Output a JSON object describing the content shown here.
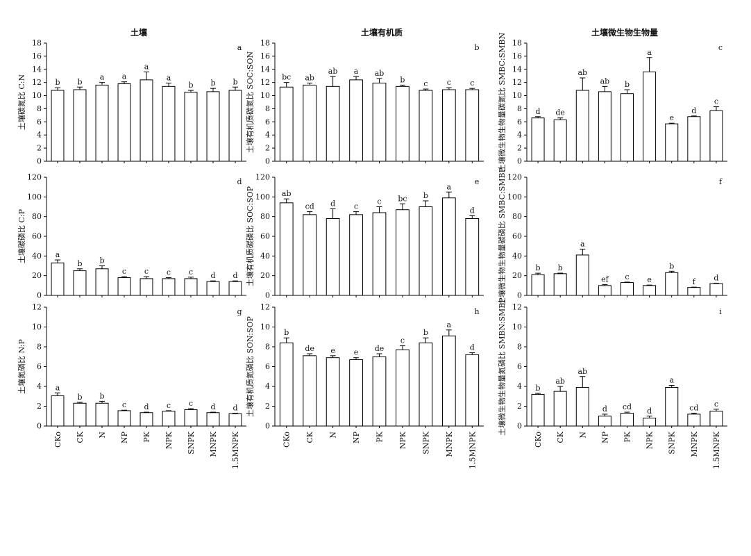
{
  "column_titles": [
    "土壤",
    "土壤有机质",
    "土壤微生物生物量"
  ],
  "chart_data": [
    {
      "panel": "a",
      "type": "bar",
      "ylabel": "土壤碳氮比 C:N",
      "ylim": [
        0,
        18
      ],
      "yticks": [
        0,
        2,
        4,
        6,
        8,
        10,
        12,
        14,
        16,
        18
      ],
      "categories": [
        "CKo",
        "CK",
        "N",
        "NP",
        "PK",
        "NPK",
        "SNPK",
        "MNPK",
        "1.5MNPK"
      ],
      "values": [
        10.8,
        10.9,
        11.6,
        11.8,
        12.4,
        11.4,
        10.5,
        10.6,
        10.8
      ],
      "errors": [
        0.4,
        0.4,
        0.4,
        0.3,
        1.2,
        0.5,
        0.3,
        0.5,
        0.5
      ],
      "letters": [
        "b",
        "b",
        "a",
        "a",
        "a",
        "a",
        "b",
        "b",
        "b"
      ]
    },
    {
      "panel": "b",
      "type": "bar",
      "ylabel": "土壤有机质碳氮比 SOC:SON",
      "ylim": [
        0,
        18
      ],
      "yticks": [
        0,
        2,
        4,
        6,
        8,
        10,
        12,
        14,
        16,
        18
      ],
      "categories": [
        "CKo",
        "CK",
        "N",
        "NP",
        "PK",
        "NPK",
        "SNPK",
        "MNPK",
        "1.5MNPK"
      ],
      "values": [
        11.3,
        11.6,
        11.4,
        12.4,
        11.9,
        11.4,
        10.8,
        10.9,
        10.9
      ],
      "errors": [
        0.7,
        0.3,
        1.5,
        0.5,
        0.7,
        0.2,
        0.2,
        0.3,
        0.2
      ],
      "letters": [
        "bc",
        "ab",
        "ab",
        "a",
        "ab",
        "b",
        "c",
        "c",
        "c"
      ]
    },
    {
      "panel": "c",
      "type": "bar",
      "ylabel": "土壤微生物生物量碳氮比 SMBC:SMBN",
      "ylim": [
        0,
        18
      ],
      "yticks": [
        0,
        2,
        4,
        6,
        8,
        10,
        12,
        14,
        16,
        18
      ],
      "categories": [
        "CKo",
        "CK",
        "N",
        "NP",
        "PK",
        "NPK",
        "SNPK",
        "MNPK",
        "1.5MNPK"
      ],
      "values": [
        6.6,
        6.3,
        10.8,
        10.6,
        10.3,
        13.6,
        5.7,
        6.8,
        7.7
      ],
      "errors": [
        0.2,
        0.3,
        1.9,
        0.8,
        0.6,
        2.2,
        0.1,
        0.1,
        0.6
      ],
      "letters": [
        "d",
        "de",
        "ab",
        "ab",
        "b",
        "a",
        "e",
        "d",
        "c"
      ]
    },
    {
      "panel": "d",
      "type": "bar",
      "ylabel": "土壤碳磷比 C:P",
      "ylim": [
        0,
        120
      ],
      "yticks": [
        0,
        20,
        40,
        60,
        80,
        100,
        120
      ],
      "categories": [
        "CKo",
        "CK",
        "N",
        "NP",
        "PK",
        "NPK",
        "SNPK",
        "MNPK",
        "1.5MNPK"
      ],
      "values": [
        33,
        25,
        27,
        18,
        17,
        17,
        17,
        14,
        14
      ],
      "errors": [
        3,
        2,
        3,
        1,
        2,
        1,
        1.5,
        0.7,
        0.7
      ],
      "letters": [
        "a",
        "b",
        "b",
        "c",
        "c",
        "c",
        "c",
        "d",
        "d"
      ]
    },
    {
      "panel": "e",
      "type": "bar",
      "ylabel": "土壤有机质碳磷比 SOC:SOP",
      "ylim": [
        0,
        120
      ],
      "yticks": [
        0,
        20,
        40,
        60,
        80,
        100,
        120
      ],
      "categories": [
        "CKo",
        "CK",
        "N",
        "NP",
        "PK",
        "NPK",
        "SNPK",
        "MNPK",
        "1.5MNPK"
      ],
      "values": [
        94,
        82,
        78,
        82,
        84,
        87,
        90,
        99,
        78
      ],
      "errors": [
        4,
        3,
        10,
        3,
        6,
        6,
        6,
        6,
        3
      ],
      "letters": [
        "ab",
        "cd",
        "d",
        "c",
        "c",
        "bc",
        "b",
        "a",
        "d"
      ]
    },
    {
      "panel": "f",
      "type": "bar",
      "ylabel": "土壤微生物生物量碳磷比 SMBC:SMBP",
      "ylim": [
        0,
        120
      ],
      "yticks": [
        0,
        20,
        40,
        60,
        80,
        100,
        120
      ],
      "categories": [
        "CKo",
        "CK",
        "N",
        "NP",
        "PK",
        "NPK",
        "SNPK",
        "MNPK",
        "1.5MNPK"
      ],
      "values": [
        21,
        22,
        41,
        10,
        13,
        10,
        23,
        8,
        12
      ],
      "errors": [
        1.5,
        0.6,
        6,
        1,
        0.5,
        0.5,
        1.5,
        0.4,
        0.4
      ],
      "letters": [
        "b",
        "b",
        "a",
        "ef",
        "c",
        "e",
        "b",
        "f",
        "d"
      ]
    },
    {
      "panel": "g",
      "type": "bar",
      "ylabel": "土壤氮磷比 N:P",
      "ylim": [
        0,
        12
      ],
      "yticks": [
        0,
        2,
        4,
        6,
        8,
        10,
        12
      ],
      "categories": [
        "CKo",
        "CK",
        "N",
        "NP",
        "PK",
        "NPK",
        "SNPK",
        "MNPK",
        "1.5MNPK"
      ],
      "values": [
        3.05,
        2.3,
        2.3,
        1.55,
        1.35,
        1.5,
        1.65,
        1.35,
        1.25
      ],
      "errors": [
        0.3,
        0.1,
        0.2,
        0.05,
        0.05,
        0.05,
        0.1,
        0.05,
        0.05
      ],
      "letters": [
        "a",
        "b",
        "b",
        "c",
        "d",
        "c",
        "c",
        "d",
        "d"
      ]
    },
    {
      "panel": "h",
      "type": "bar",
      "ylabel": "土壤有机质氮磷比 SON:SOP",
      "ylim": [
        0,
        12
      ],
      "yticks": [
        0,
        2,
        4,
        6,
        8,
        10,
        12
      ],
      "categories": [
        "CKo",
        "CK",
        "N",
        "NP",
        "PK",
        "NPK",
        "SNPK",
        "MNPK",
        "1.5MNPK"
      ],
      "values": [
        8.4,
        7.1,
        6.9,
        6.7,
        7.0,
        7.7,
        8.4,
        9.1,
        7.2
      ],
      "errors": [
        0.5,
        0.2,
        0.2,
        0.2,
        0.3,
        0.4,
        0.5,
        0.6,
        0.2
      ],
      "letters": [
        "b",
        "de",
        "e",
        "e",
        "de",
        "c",
        "b",
        "a",
        "d"
      ]
    },
    {
      "panel": "i",
      "type": "bar",
      "ylabel": "土壤微生物生物量氮磷比 SMBN:SMBP",
      "ylim": [
        0,
        12
      ],
      "yticks": [
        0,
        2,
        4,
        6,
        8,
        10,
        12
      ],
      "categories": [
        "CKo",
        "CK",
        "N",
        "NP",
        "PK",
        "NPK",
        "SNPK",
        "MNPK",
        "1.5MNPK"
      ],
      "values": [
        3.2,
        3.5,
        3.9,
        1.0,
        1.3,
        0.8,
        3.9,
        1.2,
        1.5
      ],
      "errors": [
        0.1,
        0.5,
        1.1,
        0.2,
        0.1,
        0.2,
        0.2,
        0.1,
        0.2
      ],
      "letters": [
        "b",
        "ab",
        "ab",
        "d",
        "cd",
        "d",
        "a",
        "cd",
        "c"
      ]
    }
  ]
}
